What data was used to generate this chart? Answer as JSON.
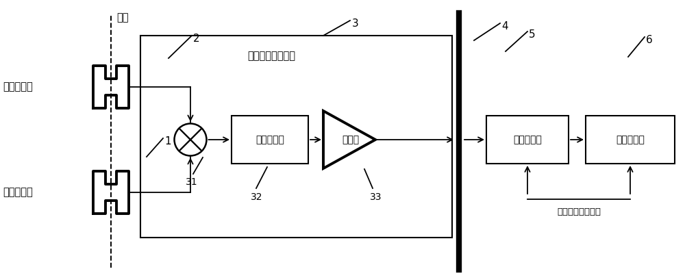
{
  "fig_width": 10.0,
  "fig_height": 4.09,
  "dpi": 100,
  "bg_color": "#ffffff",
  "line_color": "#000000",
  "text_color": "#000000",
  "font_size_label": 10.5,
  "font_size_number": 10,
  "beam_label": "束流",
  "cavity1_label": "测量相位腔",
  "cavity2_label": "基准相位腔",
  "rf_box_label": "射频信号处理前端",
  "lpf_label": "低通滤波器",
  "amp_label": "放大器",
  "daq_label": "数据采集器",
  "proc_label": "信号处理器",
  "clock_label": "采样基准时钟信号",
  "num_beam_wall": "4",
  "num_cav1": "2",
  "num_cav2": "1",
  "num_mixer": "31",
  "num_lpf": "32",
  "num_amp": "33",
  "num_daq": "5",
  "num_proc": "6",
  "num_rf_box": "3",
  "xlim": [
    0,
    10
  ],
  "ylim": [
    0,
    4.09
  ]
}
